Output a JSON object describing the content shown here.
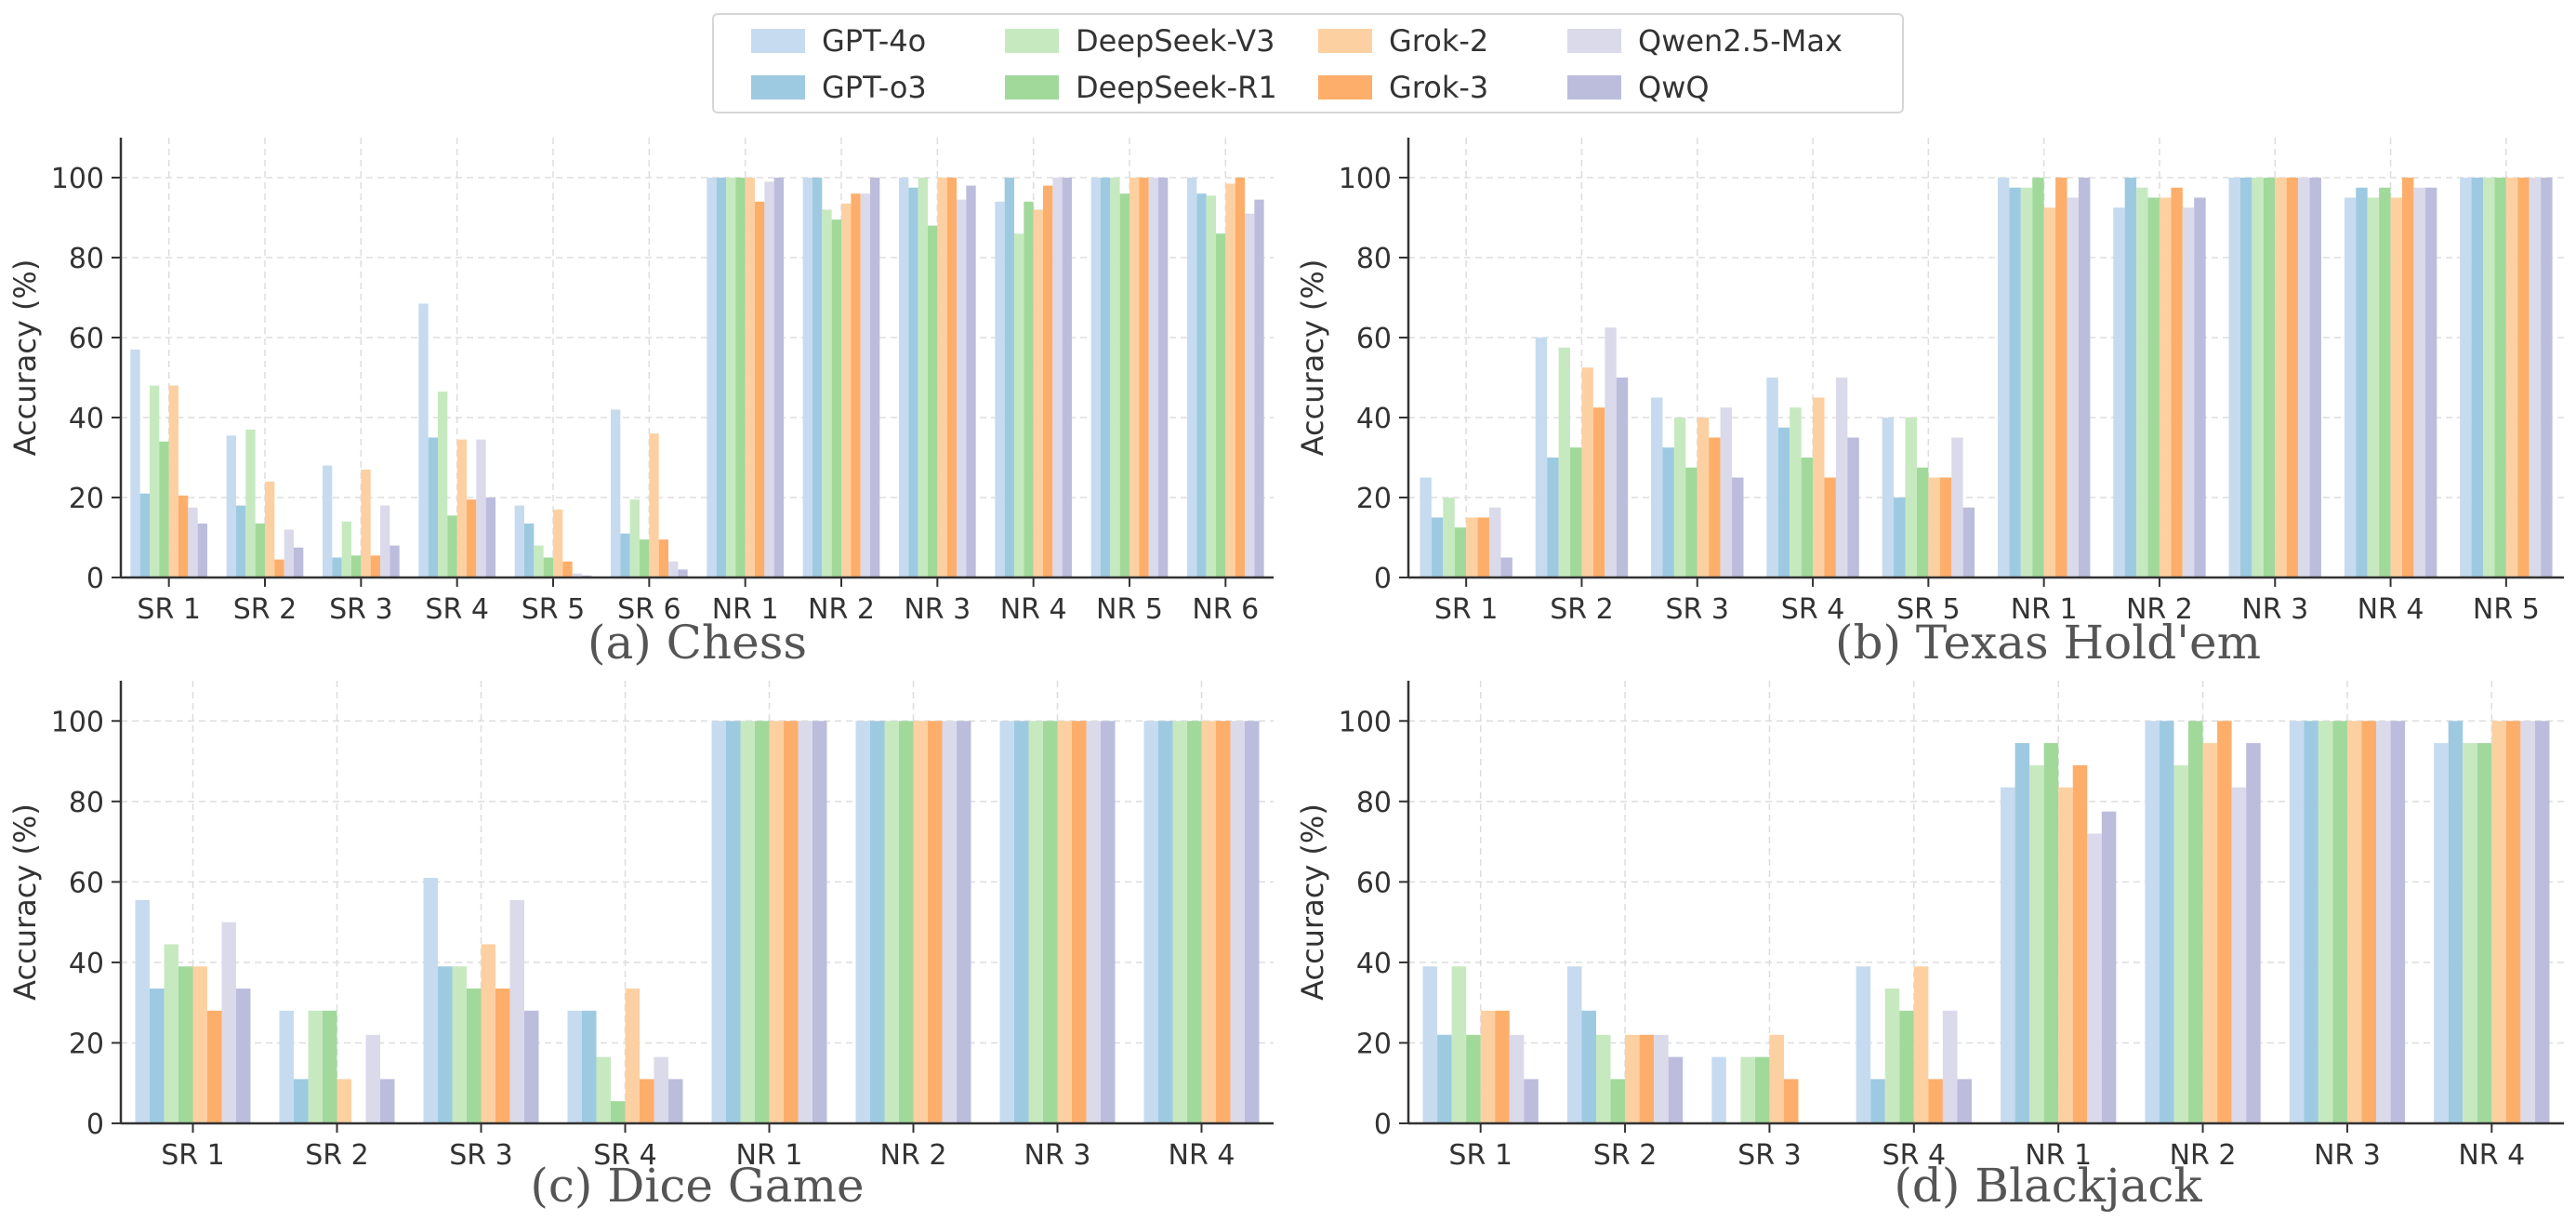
{
  "legend": {
    "items": [
      {
        "label": "GPT-4o",
        "color": "#c6dbef"
      },
      {
        "label": "GPT-o3",
        "color": "#9ecae1"
      },
      {
        "label": "DeepSeek-V3",
        "color": "#c7e9c0"
      },
      {
        "label": "DeepSeek-R1",
        "color": "#a1d99b"
      },
      {
        "label": "Grok-2",
        "color": "#fdd0a2"
      },
      {
        "label": "Grok-3",
        "color": "#fdae6b"
      },
      {
        "label": "Qwen2.5-Max",
        "color": "#dadaeb"
      },
      {
        "label": "QwQ",
        "color": "#bcbddc"
      }
    ]
  },
  "chart_data": [
    {
      "type": "bar",
      "caption": "(a) Chess",
      "ylabel": "Accuracy (%)",
      "ylim": [
        0,
        110
      ],
      "yticks": [
        0,
        20,
        40,
        60,
        80,
        100
      ],
      "grid": true,
      "categories": [
        "SR 1",
        "SR 2",
        "SR 3",
        "SR 4",
        "SR 5",
        "SR 6",
        "NR 1",
        "NR 2",
        "NR 3",
        "NR 4",
        "NR 5",
        "NR 6"
      ],
      "series": [
        {
          "name": "GPT-4o",
          "values": [
            57,
            35.5,
            28,
            68.5,
            18,
            42,
            100,
            100,
            100,
            94,
            100,
            100
          ]
        },
        {
          "name": "GPT-o3",
          "values": [
            21,
            18,
            5,
            35,
            13.5,
            11,
            100,
            100,
            97.5,
            100,
            100,
            96
          ]
        },
        {
          "name": "DeepSeek-V3",
          "values": [
            48,
            37,
            14,
            46.5,
            8,
            19.5,
            100,
            92,
            100,
            86,
            100,
            95.5
          ]
        },
        {
          "name": "DeepSeek-R1",
          "values": [
            34,
            13.5,
            5.5,
            15.5,
            5,
            9.5,
            100,
            89.5,
            88,
            94,
            96,
            86
          ]
        },
        {
          "name": "Grok-2",
          "values": [
            48,
            24,
            27,
            34.5,
            17,
            36,
            100,
            93.5,
            100,
            92,
            100,
            98.5
          ]
        },
        {
          "name": "Grok-3",
          "values": [
            20.5,
            4.5,
            5.5,
            19.5,
            4,
            9.5,
            94,
            96,
            100,
            98,
            100,
            100
          ]
        },
        {
          "name": "Qwen2.5-Max",
          "values": [
            17.5,
            12,
            18,
            34.5,
            1,
            4,
            99,
            96,
            94.5,
            100,
            100,
            91
          ]
        },
        {
          "name": "QwQ",
          "values": [
            13.5,
            7.5,
            8,
            20,
            0.5,
            2,
            100,
            100,
            98,
            100,
            100,
            94.5
          ]
        }
      ]
    },
    {
      "type": "bar",
      "caption": "(b) Texas Hold'em",
      "ylabel": "Accuracy (%)",
      "ylim": [
        0,
        110
      ],
      "yticks": [
        0,
        20,
        40,
        60,
        80,
        100
      ],
      "grid": true,
      "categories": [
        "SR 1",
        "SR 2",
        "SR 3",
        "SR 4",
        "SR 5",
        "NR 1",
        "NR 2",
        "NR 3",
        "NR 4",
        "NR 5"
      ],
      "series": [
        {
          "name": "GPT-4o",
          "values": [
            25,
            60,
            45,
            50,
            40,
            100,
            92.5,
            100,
            95,
            100
          ]
        },
        {
          "name": "GPT-o3",
          "values": [
            15,
            30,
            32.5,
            37.5,
            20,
            97.5,
            100,
            100,
            97.5,
            100
          ]
        },
        {
          "name": "DeepSeek-V3",
          "values": [
            20,
            57.5,
            40,
            42.5,
            40,
            97.5,
            97.5,
            100,
            95,
            100
          ]
        },
        {
          "name": "DeepSeek-R1",
          "values": [
            12.5,
            32.5,
            27.5,
            30,
            27.5,
            100,
            95,
            100,
            97.5,
            100
          ]
        },
        {
          "name": "Grok-2",
          "values": [
            15,
            52.5,
            40,
            45,
            25,
            92.5,
            95,
            100,
            95,
            100
          ]
        },
        {
          "name": "Grok-3",
          "values": [
            15,
            42.5,
            35,
            25,
            25,
            100,
            97.5,
            100,
            100,
            100
          ]
        },
        {
          "name": "Qwen2.5-Max",
          "values": [
            17.5,
            62.5,
            42.5,
            50,
            35,
            95,
            92.5,
            100,
            97.5,
            100
          ]
        },
        {
          "name": "QwQ",
          "values": [
            5,
            50,
            25,
            35,
            17.5,
            100,
            95,
            100,
            97.5,
            100
          ]
        }
      ]
    },
    {
      "type": "bar",
      "caption": "(c) Dice Game",
      "ylabel": "Accuracy (%)",
      "ylim": [
        0,
        110
      ],
      "yticks": [
        0,
        20,
        40,
        60,
        80,
        100
      ],
      "grid": true,
      "categories": [
        "SR 1",
        "SR 2",
        "SR 3",
        "SR 4",
        "NR 1",
        "NR 2",
        "NR 3",
        "NR 4"
      ],
      "series": [
        {
          "name": "GPT-4o",
          "values": [
            55.5,
            28,
            61,
            28,
            100,
            100,
            100,
            100
          ]
        },
        {
          "name": "GPT-o3",
          "values": [
            33.5,
            11,
            39,
            28,
            100,
            100,
            100,
            100
          ]
        },
        {
          "name": "DeepSeek-V3",
          "values": [
            44.5,
            28,
            39,
            16.5,
            100,
            100,
            100,
            100
          ]
        },
        {
          "name": "DeepSeek-R1",
          "values": [
            39,
            28,
            33.5,
            5.5,
            100,
            100,
            100,
            100
          ]
        },
        {
          "name": "Grok-2",
          "values": [
            39,
            11,
            44.5,
            33.5,
            100,
            100,
            100,
            100
          ]
        },
        {
          "name": "Grok-3",
          "values": [
            28,
            0,
            33.5,
            11,
            100,
            100,
            100,
            100
          ]
        },
        {
          "name": "Qwen2.5-Max",
          "values": [
            50,
            22,
            55.5,
            16.5,
            100,
            100,
            100,
            100
          ]
        },
        {
          "name": "QwQ",
          "values": [
            33.5,
            11,
            28,
            11,
            100,
            100,
            100,
            100
          ]
        }
      ]
    },
    {
      "type": "bar",
      "caption": "(d) Blackjack",
      "ylabel": "Accuracy (%)",
      "ylim": [
        0,
        110
      ],
      "yticks": [
        0,
        20,
        40,
        60,
        80,
        100
      ],
      "grid": true,
      "categories": [
        "SR 1",
        "SR 2",
        "SR 3",
        "SR 4",
        "NR 1",
        "NR 2",
        "NR 3",
        "NR 4"
      ],
      "series": [
        {
          "name": "GPT-4o",
          "values": [
            39,
            39,
            16.5,
            39,
            83.5,
            100,
            100,
            94.5
          ]
        },
        {
          "name": "GPT-o3",
          "values": [
            22,
            28,
            0,
            11,
            94.5,
            100,
            100,
            100
          ]
        },
        {
          "name": "DeepSeek-V3",
          "values": [
            39,
            22,
            16.5,
            33.5,
            89,
            89,
            100,
            94.5
          ]
        },
        {
          "name": "DeepSeek-R1",
          "values": [
            22,
            11,
            16.5,
            28,
            94.5,
            100,
            100,
            94.5
          ]
        },
        {
          "name": "Grok-2",
          "values": [
            28,
            22,
            22,
            39,
            83.5,
            94.5,
            100,
            100
          ]
        },
        {
          "name": "Grok-3",
          "values": [
            28,
            22,
            11,
            11,
            89,
            100,
            100,
            100
          ]
        },
        {
          "name": "Qwen2.5-Max",
          "values": [
            22,
            22,
            0,
            28,
            72,
            83.5,
            100,
            100
          ]
        },
        {
          "name": "QwQ",
          "values": [
            11,
            16.5,
            0,
            11,
            77.5,
            94.5,
            100,
            100
          ]
        }
      ]
    }
  ]
}
